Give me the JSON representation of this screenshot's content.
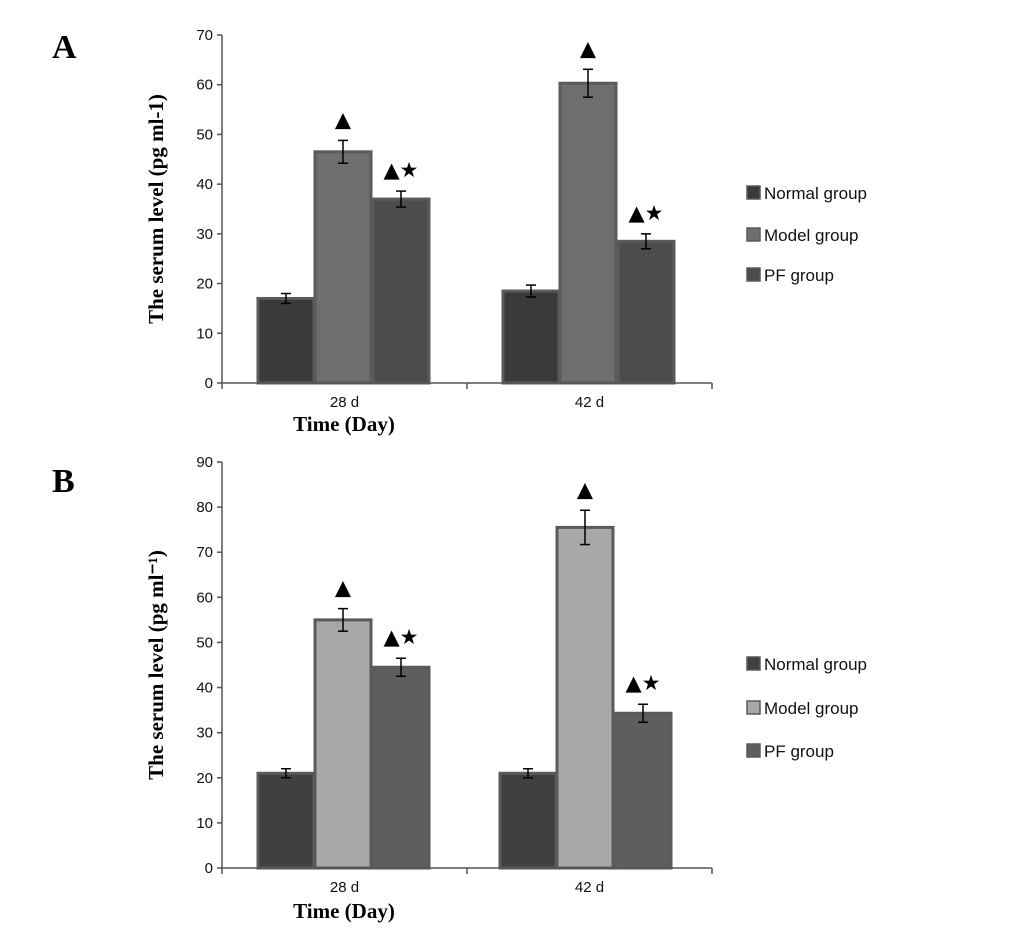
{
  "chart_data": [
    {
      "panel": "A",
      "type": "bar",
      "categories": [
        "28 d",
        "42 d"
      ],
      "series": [
        {
          "name": "Normal group",
          "values": [
            17,
            18.5
          ],
          "errors": [
            1,
            1.2
          ],
          "markers": [
            "",
            ""
          ],
          "color": "#3a3a3a"
        },
        {
          "name": "Model group",
          "values": [
            46.5,
            60.3
          ],
          "errors": [
            2.3,
            2.8
          ],
          "markers": [
            "▲",
            "▲"
          ],
          "color": "#6e6e6e"
        },
        {
          "name": "PF group",
          "values": [
            37,
            28.5
          ],
          "errors": [
            1.6,
            1.5
          ],
          "markers": [
            "▲★",
            "▲★"
          ],
          "color": "#4c4c4c"
        }
      ],
      "xlabel": "Time (Day)",
      "ylabel": "The serum level (pg ml-1)",
      "ylim": [
        0,
        70
      ],
      "ytick_step": 10,
      "grid": false,
      "legend": "right"
    },
    {
      "panel": "B",
      "type": "bar",
      "categories": [
        "28 d",
        "42 d"
      ],
      "series": [
        {
          "name": "Normal group",
          "values": [
            21,
            21
          ],
          "errors": [
            1,
            1
          ],
          "markers": [
            "",
            ""
          ],
          "color": "#404040"
        },
        {
          "name": "Model group",
          "values": [
            55,
            75.5
          ],
          "errors": [
            2.5,
            3.8
          ],
          "markers": [
            "▲",
            "▲"
          ],
          "color": "#a8a8a8"
        },
        {
          "name": "PF group",
          "values": [
            44.5,
            34.3
          ],
          "errors": [
            2,
            2
          ],
          "markers": [
            "▲★",
            "▲★"
          ],
          "color": "#5e5e5e"
        }
      ],
      "xlabel": "Time (Day)",
      "ylabel": "The serum level (pg ml⁻¹)",
      "ylim": [
        0,
        90
      ],
      "ytick_step": 10,
      "grid": false,
      "legend": "right"
    }
  ]
}
